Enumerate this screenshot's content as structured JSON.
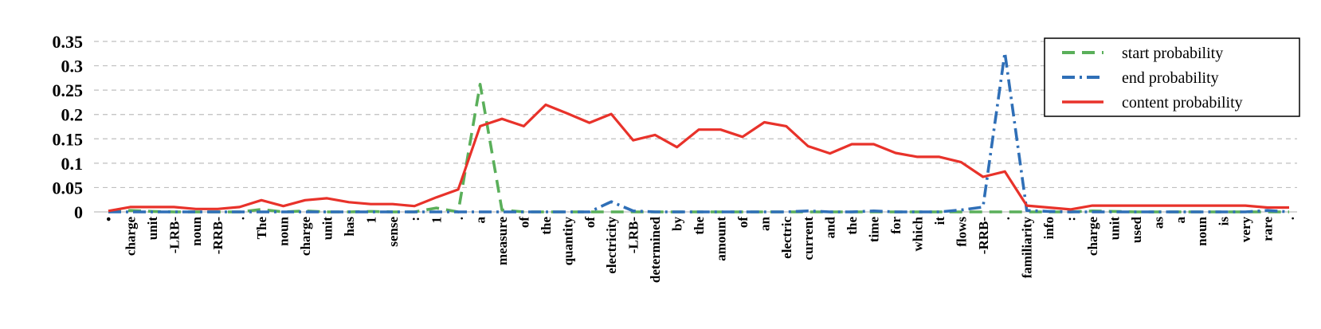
{
  "chart_data": {
    "type": "line",
    "title": "",
    "xlabel": "",
    "ylabel": "",
    "ylim": [
      0,
      0.35
    ],
    "yticks": [
      "0",
      "0.05",
      "0.1",
      "0.15",
      "0.2",
      "0.25",
      "0.3",
      "0.35"
    ],
    "grid": true,
    "legend_position": "top-right",
    "categories": [
      "•",
      "charge",
      "unit",
      "-LRB-",
      "noun",
      "-RRB-",
      ".",
      "The",
      "noun",
      "charge",
      "unit",
      "has",
      "1",
      "sense",
      ":",
      "1",
      ".",
      "a",
      "measure",
      "of",
      "the",
      "quantity",
      "of",
      "electricity",
      "-LRB-",
      "determined",
      "by",
      "the",
      "amount",
      "of",
      "an",
      "electric",
      "current",
      "and",
      "the",
      "time",
      "for",
      "which",
      "it",
      "flows",
      "-RRB-",
      ".",
      "familiarity",
      "info",
      ":",
      "charge",
      "unit",
      "used",
      "as",
      "a",
      "noun",
      "is",
      "very",
      "rare",
      "."
    ],
    "series": [
      {
        "name": "start probability",
        "color": "#5aaf5a",
        "dash": "dashed",
        "values": [
          0.0,
          0.003,
          0.001,
          0.0,
          0.0,
          0.0,
          0.0,
          0.005,
          0.0,
          0.002,
          0.0,
          0.0,
          0.001,
          0.0,
          0.0,
          0.008,
          0.0,
          0.262,
          0.004,
          0.0,
          0.0,
          0.0,
          0.0,
          0.0,
          0.0,
          0.0,
          0.0,
          0.0,
          0.0,
          0.0,
          0.0,
          0.0,
          0.0,
          0.0,
          0.0,
          0.0,
          0.0,
          0.0,
          0.0,
          0.0,
          0.0,
          0.0,
          0.0,
          0.0,
          0.0,
          0.002,
          0.001,
          0.0,
          0.0,
          0.0,
          0.0,
          0.0,
          0.0,
          0.0,
          0.0
        ]
      },
      {
        "name": "end probability",
        "color": "#2f6fb7",
        "dash": "dashdot",
        "values": [
          0.0,
          0.0,
          0.0,
          0.0,
          0.0,
          0.0,
          0.0,
          0.0,
          0.0,
          0.0,
          0.0,
          0.0,
          0.0,
          0.0,
          0.0,
          0.0,
          0.0,
          0.0,
          0.0,
          0.0,
          0.0,
          0.0,
          0.0,
          0.021,
          0.002,
          0.0,
          0.0,
          0.0,
          0.0,
          0.0,
          0.0,
          0.0,
          0.002,
          0.0,
          0.0,
          0.002,
          0.0,
          0.0,
          0.0,
          0.004,
          0.01,
          0.327,
          0.003,
          0.001,
          0.0,
          0.0,
          0.0,
          0.0,
          0.0,
          0.0,
          0.0,
          0.0,
          0.0,
          0.003,
          0.0
        ]
      },
      {
        "name": "content probability",
        "color": "#e8322a",
        "dash": "solid",
        "values": [
          0.002,
          0.01,
          0.01,
          0.01,
          0.006,
          0.006,
          0.01,
          0.024,
          0.012,
          0.024,
          0.028,
          0.02,
          0.016,
          0.016,
          0.012,
          0.03,
          0.046,
          0.176,
          0.191,
          0.176,
          0.22,
          0.202,
          0.183,
          0.201,
          0.147,
          0.158,
          0.133,
          0.169,
          0.169,
          0.154,
          0.184,
          0.176,
          0.135,
          0.12,
          0.139,
          0.139,
          0.121,
          0.113,
          0.113,
          0.102,
          0.072,
          0.083,
          0.013,
          0.009,
          0.005,
          0.013,
          0.013,
          0.013,
          0.013,
          0.013,
          0.013,
          0.013,
          0.013,
          0.009,
          0.009
        ]
      }
    ]
  }
}
